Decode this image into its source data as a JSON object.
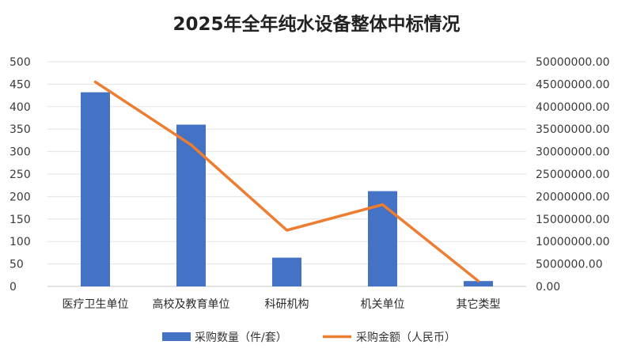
{
  "chart_data": {
    "type": "bar",
    "title": "2025年全年纯水设备整体中标情况",
    "categories": [
      "医疗卫生单位",
      "高校及教育单位",
      "科研机构",
      "机关单位",
      "其它类型"
    ],
    "series": [
      {
        "name": "采购数量（件/套）",
        "type": "bar",
        "axis": "left",
        "color": "#4472C4",
        "values": [
          432,
          360,
          64,
          212,
          12
        ]
      },
      {
        "name": "采购金额（人民币）",
        "type": "line",
        "axis": "right",
        "color": "#ED7D31",
        "values": [
          45500000,
          31500000,
          12500000,
          18200000,
          1200000
        ]
      }
    ],
    "y_left": {
      "ylim": [
        0,
        500
      ],
      "ticks": [
        0,
        50,
        100,
        150,
        200,
        250,
        300,
        350,
        400,
        450,
        500
      ],
      "tick_labels": [
        "0",
        "50",
        "100",
        "150",
        "200",
        "250",
        "300",
        "350",
        "400",
        "450",
        "500"
      ]
    },
    "y_right": {
      "ylim": [
        0,
        50000000
      ],
      "ticks": [
        0,
        5000000,
        10000000,
        15000000,
        20000000,
        25000000,
        30000000,
        35000000,
        40000000,
        45000000,
        50000000
      ],
      "tick_labels": [
        "0.00",
        "5000000.00",
        "10000000.00",
        "15000000.00",
        "20000000.00",
        "25000000.00",
        "30000000.00",
        "35000000.00",
        "40000000.00",
        "45000000.00",
        "50000000.00"
      ]
    },
    "grid": true,
    "legend_position": "bottom"
  }
}
